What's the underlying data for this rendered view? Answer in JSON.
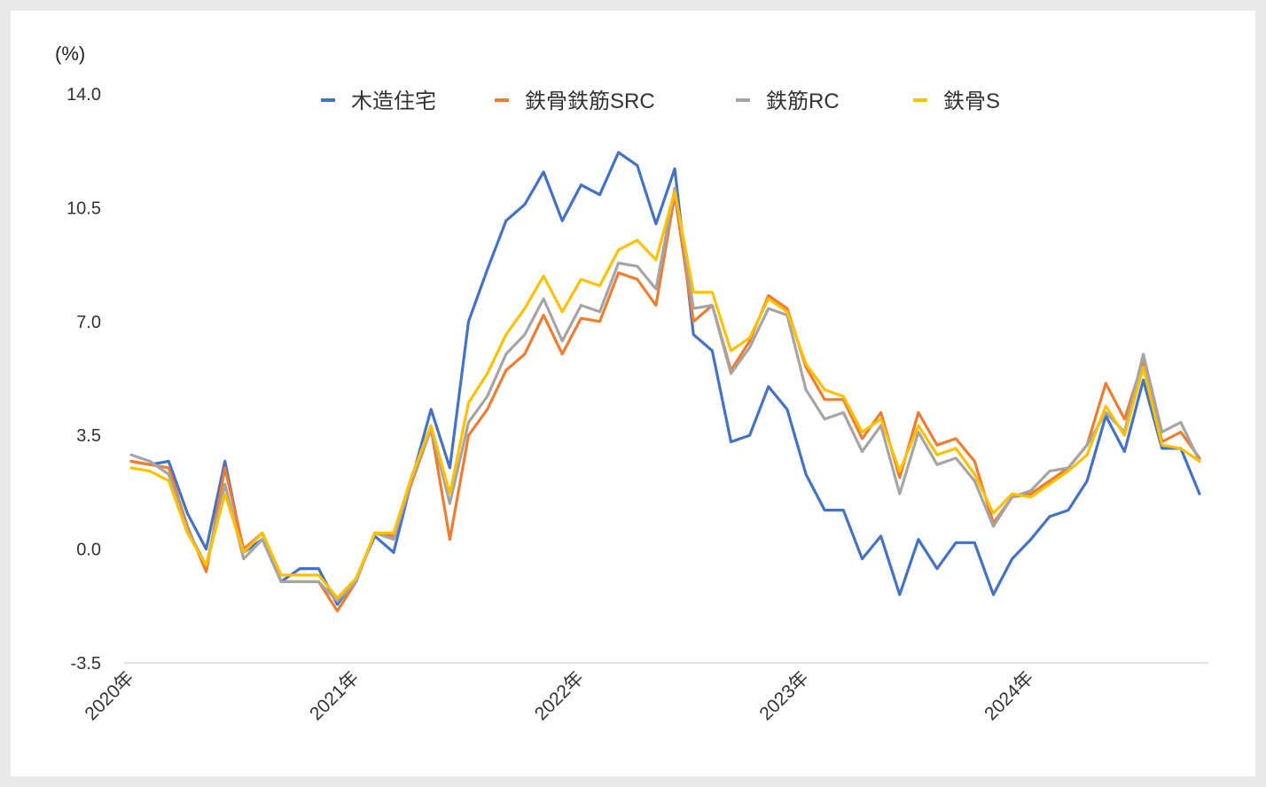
{
  "chart_data": {
    "type": "line",
    "unit_label": "(%)",
    "ylim": [
      -3.5,
      14.0
    ],
    "y_ticks": [
      "14.0",
      "10.5",
      "7.0",
      "3.5",
      "0.0",
      "-3.5"
    ],
    "y_tick_values": [
      14.0,
      10.5,
      7.0,
      3.5,
      0.0,
      -3.5
    ],
    "x_tick_labels": [
      "2020年",
      "2021年",
      "2022年",
      "2023年",
      "2024年"
    ],
    "x_tick_index": [
      0,
      12,
      24,
      36,
      48
    ],
    "legend_position": "top-center",
    "grid": false,
    "series": [
      {
        "name": "木造住宅",
        "color": "#4472c4",
        "values": [
          2.7,
          2.6,
          2.7,
          1.1,
          0.0,
          2.7,
          -0.1,
          0.3,
          -1.0,
          -0.6,
          -0.6,
          -1.7,
          -0.9,
          0.4,
          -0.1,
          2.2,
          4.3,
          2.5,
          7.0,
          8.6,
          10.1,
          10.6,
          11.6,
          10.1,
          11.2,
          10.9,
          12.2,
          11.8,
          10.0,
          11.7,
          6.6,
          6.1,
          3.3,
          3.5,
          5.0,
          4.3,
          2.3,
          1.2,
          1.2,
          -0.3,
          0.4,
          -1.4,
          0.3,
          -0.6,
          0.2,
          0.2,
          -1.4,
          -0.3,
          0.3,
          1.0,
          1.2,
          2.1,
          4.1,
          3.0,
          5.2,
          3.1,
          3.1,
          1.7
        ]
      },
      {
        "name": "鉄骨鉄筋SRC",
        "color": "#ed7d31",
        "values": [
          2.7,
          2.6,
          2.5,
          0.7,
          -0.7,
          2.5,
          0.0,
          0.5,
          -1.0,
          -1.0,
          -1.0,
          -1.9,
          -1.0,
          0.5,
          0.4,
          2.1,
          3.7,
          0.3,
          3.5,
          4.3,
          5.5,
          6.0,
          7.2,
          6.0,
          7.1,
          7.0,
          8.5,
          8.3,
          7.5,
          10.9,
          7.0,
          7.5,
          5.5,
          6.4,
          7.8,
          7.4,
          5.6,
          4.6,
          4.6,
          3.4,
          4.2,
          2.2,
          4.2,
          3.2,
          3.4,
          2.7,
          0.8,
          1.6,
          1.7,
          2.1,
          2.5,
          3.2,
          5.1,
          4.0,
          5.8,
          3.3,
          3.6,
          2.8
        ]
      },
      {
        "name": "鉄筋RC",
        "color": "#a5a5a5",
        "values": [
          2.9,
          2.7,
          2.3,
          0.6,
          -0.5,
          2.0,
          -0.3,
          0.3,
          -1.0,
          -1.0,
          -1.0,
          -1.6,
          -1.0,
          0.5,
          0.3,
          2.2,
          3.7,
          1.4,
          3.9,
          4.7,
          6.0,
          6.6,
          7.7,
          6.4,
          7.5,
          7.3,
          8.8,
          8.7,
          8.0,
          11.1,
          7.4,
          7.5,
          5.4,
          6.2,
          7.4,
          7.2,
          4.9,
          4.0,
          4.2,
          3.0,
          3.8,
          1.7,
          3.6,
          2.6,
          2.8,
          2.1,
          0.7,
          1.6,
          1.8,
          2.4,
          2.5,
          3.2,
          4.2,
          3.6,
          6.0,
          3.6,
          3.9,
          2.7
        ]
      },
      {
        "name": "鉄骨S",
        "color": "#ffc000",
        "values": [
          2.5,
          2.4,
          2.1,
          0.5,
          -0.5,
          1.7,
          -0.1,
          0.5,
          -0.8,
          -0.8,
          -0.8,
          -1.5,
          -0.9,
          0.5,
          0.5,
          2.3,
          3.8,
          1.7,
          4.5,
          5.4,
          6.6,
          7.4,
          8.4,
          7.3,
          8.3,
          8.1,
          9.2,
          9.5,
          8.9,
          11.0,
          7.9,
          7.9,
          6.1,
          6.5,
          7.7,
          7.3,
          5.7,
          4.9,
          4.7,
          3.6,
          4.0,
          2.4,
          3.8,
          2.9,
          3.1,
          2.3,
          1.1,
          1.7,
          1.6,
          2.0,
          2.4,
          2.9,
          4.4,
          3.5,
          5.6,
          3.2,
          3.1,
          2.7
        ]
      }
    ]
  }
}
